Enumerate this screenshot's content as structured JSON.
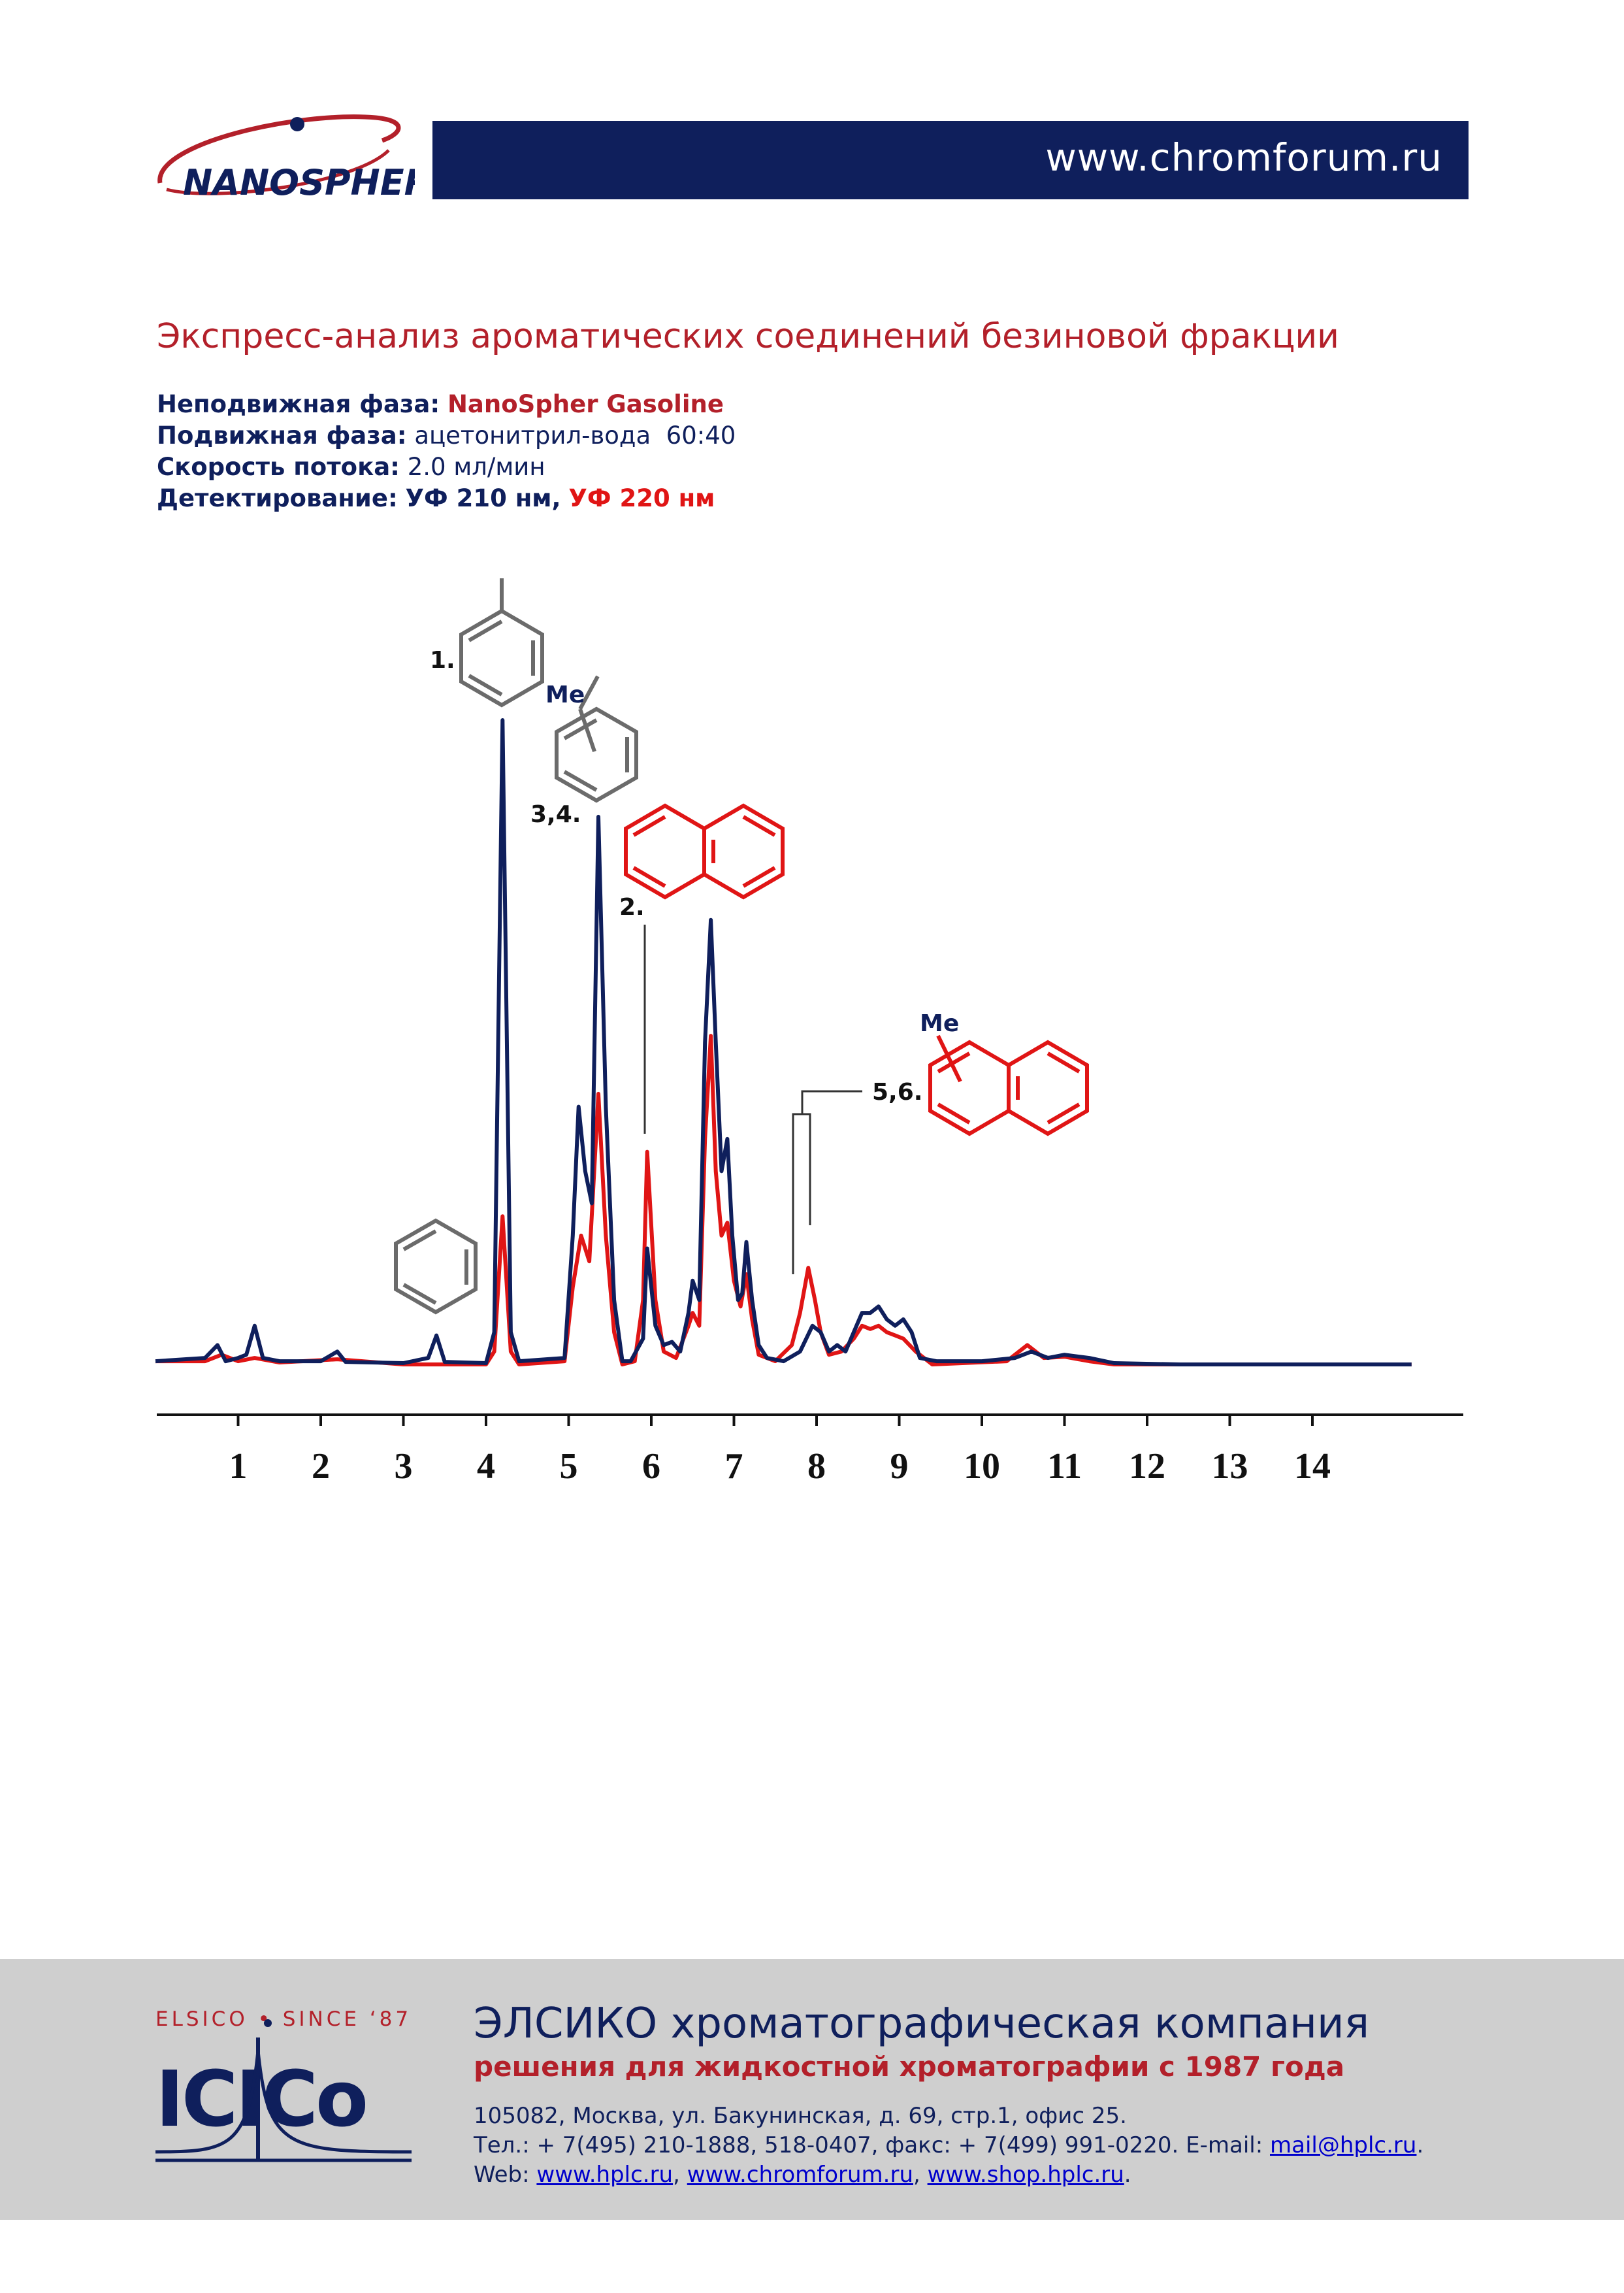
{
  "header": {
    "logo_text": "NANOSPHER",
    "url": "www.chromforum.ru"
  },
  "document": {
    "title": "Экспресс-анализ ароматических соединений безиновой фракции",
    "stationary_label": "Неподвижная фаза:",
    "stationary_value": "NanoSpher Gasoline",
    "mobile_label": "Подвижная фаза:",
    "mobile_value": "ацетонитрил-вода  60:40",
    "flow_label": "Скорость потока:",
    "flow_value": "2.0 мл/мин",
    "detection_label": "Детектирование:",
    "detection_uv210": "УФ 210 нм",
    "detection_sep": ",",
    "detection_uv220": "УФ 220 нм"
  },
  "chart_data": {
    "type": "line",
    "x_ticks": [
      1,
      2,
      3,
      4,
      5,
      6,
      7,
      8,
      9,
      10,
      11,
      12,
      13,
      14
    ],
    "xlim": [
      0,
      15.2
    ],
    "series": [
      {
        "name": "УФ 210 нм",
        "color": "#0f1f5c",
        "points": [
          [
            0,
            0.005
          ],
          [
            0.6,
            0.01
          ],
          [
            0.75,
            0.03
          ],
          [
            0.85,
            0.005
          ],
          [
            1.0,
            0.01
          ],
          [
            1.1,
            0.015
          ],
          [
            1.2,
            0.06
          ],
          [
            1.3,
            0.01
          ],
          [
            1.5,
            0.005
          ],
          [
            2.0,
            0.005
          ],
          [
            2.2,
            0.02
          ],
          [
            2.3,
            0.004
          ],
          [
            3.0,
            0.002
          ],
          [
            3.3,
            0.01
          ],
          [
            3.4,
            0.045
          ],
          [
            3.5,
            0.004
          ],
          [
            4.0,
            0.002
          ],
          [
            4.1,
            0.05
          ],
          [
            4.2,
            1.0
          ],
          [
            4.3,
            0.05
          ],
          [
            4.4,
            0.005
          ],
          [
            4.95,
            0.01
          ],
          [
            5.05,
            0.2
          ],
          [
            5.12,
            0.4
          ],
          [
            5.2,
            0.3
          ],
          [
            5.28,
            0.25
          ],
          [
            5.36,
            0.85
          ],
          [
            5.45,
            0.4
          ],
          [
            5.55,
            0.1
          ],
          [
            5.65,
            0.005
          ],
          [
            5.75,
            0.005
          ],
          [
            5.9,
            0.04
          ],
          [
            5.95,
            0.18
          ],
          [
            6.05,
            0.06
          ],
          [
            6.15,
            0.03
          ],
          [
            6.25,
            0.035
          ],
          [
            6.35,
            0.02
          ],
          [
            6.45,
            0.08
          ],
          [
            6.5,
            0.13
          ],
          [
            6.58,
            0.1
          ],
          [
            6.65,
            0.5
          ],
          [
            6.72,
            0.69
          ],
          [
            6.78,
            0.5
          ],
          [
            6.85,
            0.3
          ],
          [
            6.92,
            0.35
          ],
          [
            6.98,
            0.2
          ],
          [
            7.05,
            0.1
          ],
          [
            7.1,
            0.11
          ],
          [
            7.15,
            0.19
          ],
          [
            7.22,
            0.1
          ],
          [
            7.3,
            0.03
          ],
          [
            7.4,
            0.01
          ],
          [
            7.6,
            0.005
          ],
          [
            7.8,
            0.02
          ],
          [
            7.95,
            0.06
          ],
          [
            8.05,
            0.05
          ],
          [
            8.15,
            0.02
          ],
          [
            8.25,
            0.03
          ],
          [
            8.35,
            0.02
          ],
          [
            8.45,
            0.05
          ],
          [
            8.55,
            0.08
          ],
          [
            8.65,
            0.08
          ],
          [
            8.75,
            0.09
          ],
          [
            8.85,
            0.07
          ],
          [
            8.95,
            0.06
          ],
          [
            9.05,
            0.07
          ],
          [
            9.15,
            0.05
          ],
          [
            9.25,
            0.01
          ],
          [
            9.45,
            0.005
          ],
          [
            9.7,
            0.005
          ],
          [
            10.0,
            0.005
          ],
          [
            10.4,
            0.01
          ],
          [
            10.6,
            0.02
          ],
          [
            10.8,
            0.01
          ],
          [
            11.0,
            0.015
          ],
          [
            11.3,
            0.01
          ],
          [
            11.6,
            0.002
          ],
          [
            12.4,
            0.0
          ],
          [
            15.2,
            0.0
          ]
        ]
      },
      {
        "name": "УФ 220 нм",
        "color": "#e01515",
        "points": [
          [
            0,
            0.005
          ],
          [
            0.6,
            0.005
          ],
          [
            0.8,
            0.015
          ],
          [
            1.0,
            0.005
          ],
          [
            1.2,
            0.01
          ],
          [
            1.5,
            0.003
          ],
          [
            2.2,
            0.008
          ],
          [
            3.0,
            0.0
          ],
          [
            4.0,
            0.0
          ],
          [
            4.1,
            0.02
          ],
          [
            4.2,
            0.23
          ],
          [
            4.3,
            0.02
          ],
          [
            4.4,
            0.0
          ],
          [
            4.95,
            0.005
          ],
          [
            5.05,
            0.12
          ],
          [
            5.15,
            0.2
          ],
          [
            5.25,
            0.16
          ],
          [
            5.36,
            0.42
          ],
          [
            5.45,
            0.2
          ],
          [
            5.55,
            0.05
          ],
          [
            5.65,
            0.0
          ],
          [
            5.8,
            0.005
          ],
          [
            5.9,
            0.1
          ],
          [
            5.95,
            0.33
          ],
          [
            6.05,
            0.1
          ],
          [
            6.15,
            0.02
          ],
          [
            6.3,
            0.01
          ],
          [
            6.45,
            0.06
          ],
          [
            6.5,
            0.08
          ],
          [
            6.58,
            0.06
          ],
          [
            6.65,
            0.35
          ],
          [
            6.72,
            0.51
          ],
          [
            6.78,
            0.3
          ],
          [
            6.85,
            0.2
          ],
          [
            6.92,
            0.22
          ],
          [
            7.0,
            0.13
          ],
          [
            7.08,
            0.09
          ],
          [
            7.15,
            0.14
          ],
          [
            7.22,
            0.07
          ],
          [
            7.3,
            0.015
          ],
          [
            7.5,
            0.005
          ],
          [
            7.7,
            0.03
          ],
          [
            7.8,
            0.08
          ],
          [
            7.9,
            0.15
          ],
          [
            7.98,
            0.1
          ],
          [
            8.05,
            0.05
          ],
          [
            8.15,
            0.015
          ],
          [
            8.3,
            0.02
          ],
          [
            8.45,
            0.04
          ],
          [
            8.55,
            0.06
          ],
          [
            8.65,
            0.055
          ],
          [
            8.75,
            0.06
          ],
          [
            8.85,
            0.05
          ],
          [
            8.95,
            0.045
          ],
          [
            9.05,
            0.04
          ],
          [
            9.2,
            0.02
          ],
          [
            9.4,
            0.0
          ],
          [
            10.3,
            0.005
          ],
          [
            10.55,
            0.03
          ],
          [
            10.75,
            0.01
          ],
          [
            11.0,
            0.012
          ],
          [
            11.3,
            0.005
          ],
          [
            11.6,
            0.0
          ],
          [
            15.2,
            0.0
          ]
        ]
      }
    ],
    "annotations": [
      "1.",
      "3,4.",
      "2.",
      "5,6.",
      "Me",
      "Me"
    ]
  },
  "footer": {
    "logo_slogan": "ELSICO • SINCE ‘87",
    "logo_text": "ICICo",
    "company": "ЭЛСИКО хроматографическая компания",
    "tagline": "решения для жидкостной хроматографии с 1987 года",
    "address": "105082, Москва, ул. Бакунинская, д. 69, стр.1, офис 25.",
    "phones_prefix": "Тел.: + 7(495) 210-1888, 518-0407, факс: + 7(499) 991-0220. E-mail: ",
    "email": "mail@hplc.ru",
    "email_suffix": ".",
    "web_prefix": "Web: ",
    "web1": "www.hplc.ru",
    "web2": "www.chromforum.ru",
    "web3": "www.shop.hplc.ru",
    "sep": ", ",
    "end": "."
  }
}
